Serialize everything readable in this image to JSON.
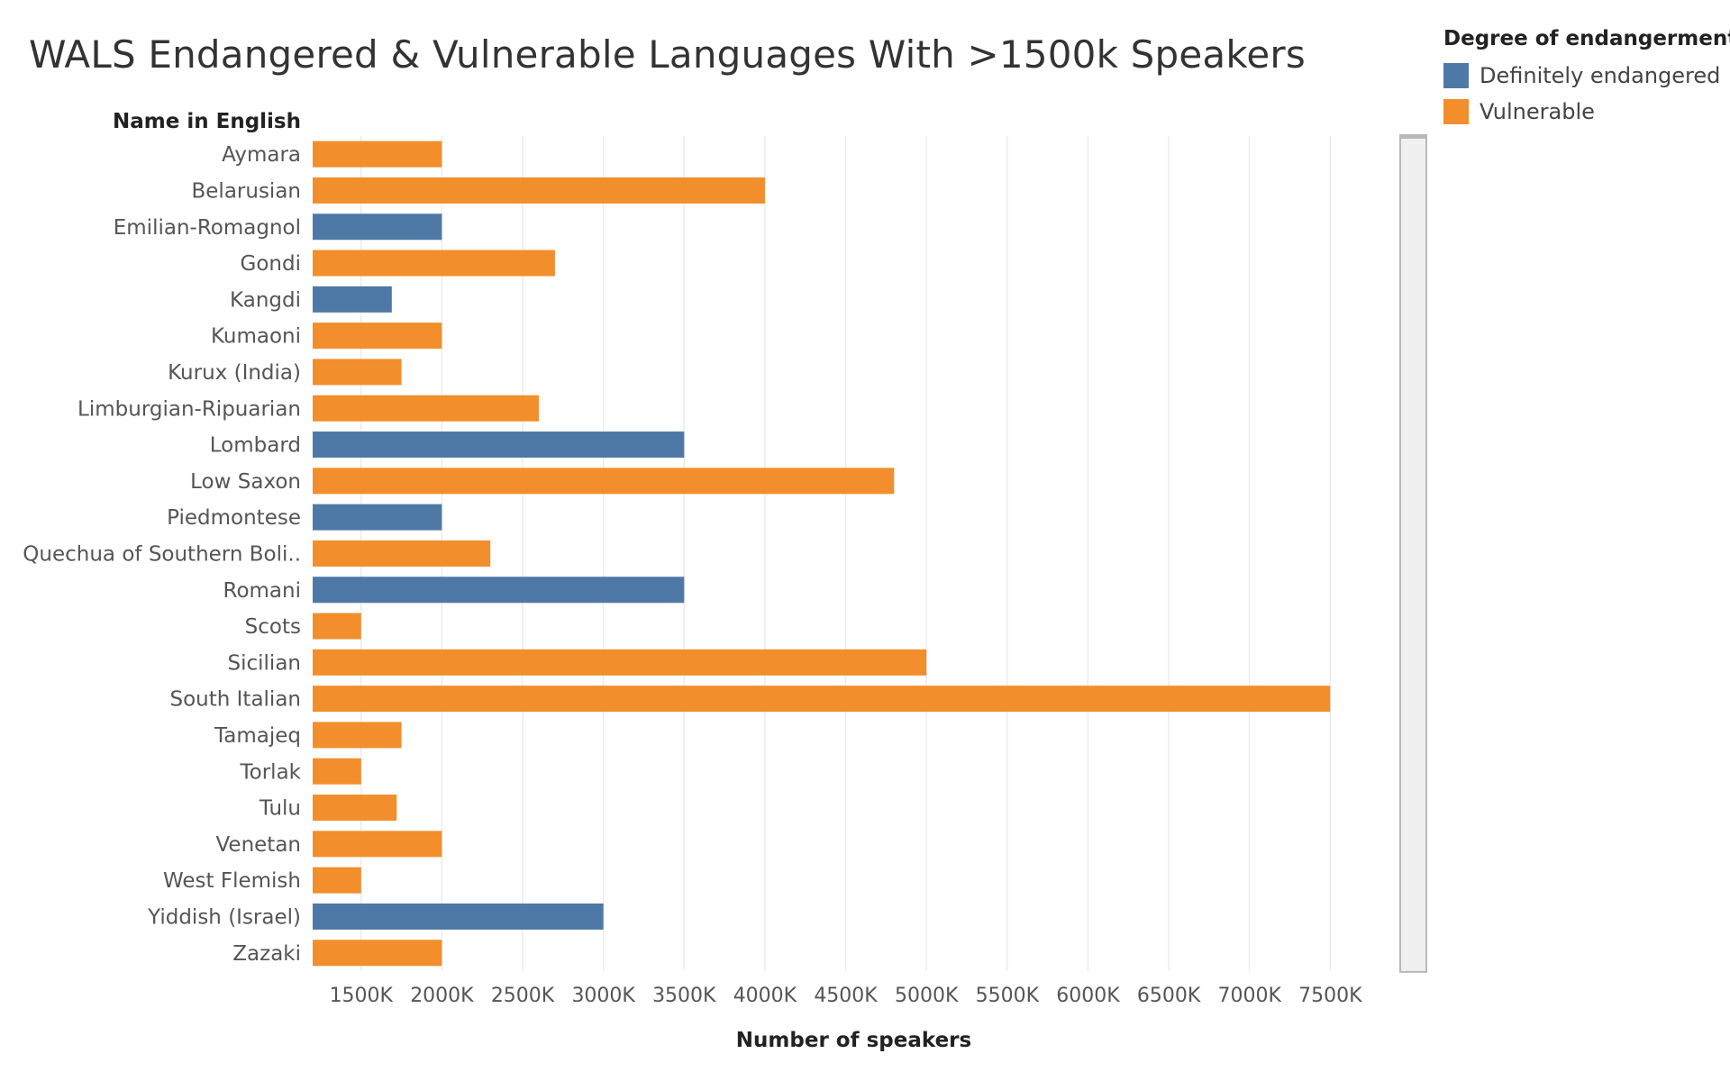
{
  "title": "WALS Endangered & Vulnerable Languages With >1500k Speakers",
  "legend": {
    "title": "Degree of endangerment",
    "items": [
      {
        "label": "Definitely endangered",
        "color": "#4e79a7"
      },
      {
        "label": "Vulnerable",
        "color": "#f28e2b"
      }
    ]
  },
  "chart_data": {
    "type": "bar",
    "orientation": "horizontal",
    "row_header": "Name in English",
    "xlabel": "Number of speakers",
    "xlim": [
      1200,
      7900
    ],
    "x_ticks": [
      1500,
      2000,
      2500,
      3000,
      3500,
      4000,
      4500,
      5000,
      5500,
      6000,
      6500,
      7000,
      7500
    ],
    "x_tick_labels": [
      "1500K",
      "2000K",
      "2500K",
      "3000K",
      "3500K",
      "4000K",
      "4500K",
      "5000K",
      "5500K",
      "6000K",
      "6500K",
      "7000K",
      "7500K"
    ],
    "grid": "vertical",
    "legend_position": "top-right",
    "categories": [
      "Aymara",
      "Belarusian",
      "Emilian-Romagnol",
      "Gondi",
      "Kangdi",
      "Kumaoni",
      "Kurux (India)",
      "Limburgian-Ripuarian",
      "Lombard",
      "Low Saxon",
      "Piedmontese",
      "Quechua of Southern Boli..",
      "Romani",
      "Scots",
      "Sicilian",
      "South Italian",
      "Tamajeq",
      "Torlak",
      "Tulu",
      "Venetan",
      "West Flemish",
      "Yiddish (Israel)",
      "Zazaki"
    ],
    "values": [
      2000,
      4000,
      2000,
      2700,
      1690,
      2000,
      1750,
      2600,
      3500,
      4800,
      2000,
      2300,
      3500,
      1500,
      5000,
      7500,
      1750,
      1500,
      1720,
      2000,
      1500,
      3000,
      2000
    ],
    "degree": [
      "Vulnerable",
      "Vulnerable",
      "Definitely endangered",
      "Vulnerable",
      "Definitely endangered",
      "Vulnerable",
      "Vulnerable",
      "Vulnerable",
      "Definitely endangered",
      "Vulnerable",
      "Definitely endangered",
      "Vulnerable",
      "Definitely endangered",
      "Vulnerable",
      "Vulnerable",
      "Vulnerable",
      "Vulnerable",
      "Vulnerable",
      "Vulnerable",
      "Vulnerable",
      "Vulnerable",
      "Definitely endangered",
      "Vulnerable"
    ]
  }
}
